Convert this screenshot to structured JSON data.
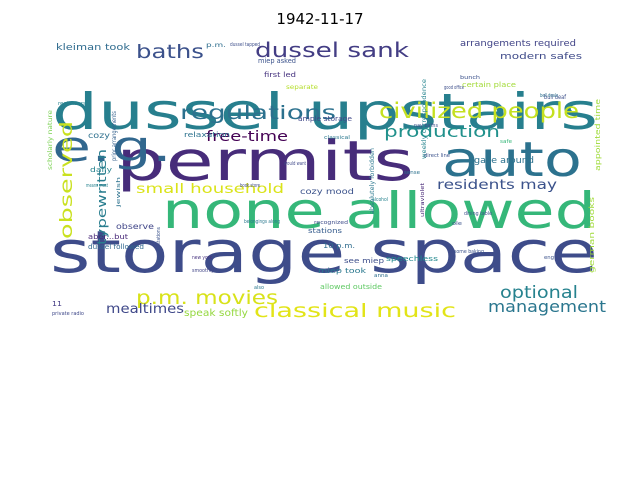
{
  "title": "1942-11-17",
  "words": [
    {
      "text": "storage space",
      "color": "#3e4c8a"
    },
    {
      "text": "none allowed",
      "color": "#35b779"
    },
    {
      "text": "permits",
      "color": "#472c7a"
    },
    {
      "text": "auto",
      "color": "#2c728e"
    },
    {
      "text": "dussel upstairs",
      "color": "#277f8e"
    },
    {
      "text": "e.g.",
      "color": "#31678e"
    },
    {
      "text": "regulations",
      "color": "#2c718e"
    },
    {
      "text": "civilized people",
      "color": "#c5e021"
    },
    {
      "text": "dussel sank",
      "color": "#433d84"
    },
    {
      "text": "baths",
      "color": "#3b518b"
    },
    {
      "text": "production",
      "color": "#21918c"
    },
    {
      "text": "observed",
      "color": "#cae11f"
    },
    {
      "text": "p.m. movies",
      "color": "#d8e219"
    },
    {
      "text": "classical music",
      "color": "#e2e418"
    },
    {
      "text": "optional",
      "color": "#26828e"
    },
    {
      "text": "management",
      "color": "#2a768e"
    },
    {
      "text": "small household",
      "color": "#dae319"
    },
    {
      "text": "free-time",
      "color": "#440154"
    },
    {
      "text": "residents may",
      "color": "#3b528b"
    },
    {
      "text": "typewritten",
      "color": "#287d8e"
    },
    {
      "text": "mealtimes",
      "color": "#3f4889"
    },
    {
      "text": "speak softly",
      "color": "#95d840"
    },
    {
      "text": "arrangements required",
      "color": "#414487"
    },
    {
      "text": "modern safes",
      "color": "#3e4a89"
    },
    {
      "text": "kleiman took",
      "color": "#2f6b8e"
    },
    {
      "text": "gaze around",
      "color": "#2c728e"
    },
    {
      "text": "cozy mood",
      "color": "#3b528b"
    },
    {
      "text": "observe",
      "color": "#404688"
    },
    {
      "text": "dussel followed",
      "color": "#31688e"
    },
    {
      "text": "10 p.m.",
      "color": "#2f6c8e"
    },
    {
      "text": "see miep",
      "color": "#3d4e8a"
    },
    {
      "text": "allowed outside",
      "color": "#5ec962"
    },
    {
      "text": "speechless",
      "color": "#23898e"
    },
    {
      "text": "stations",
      "color": "#365c8d"
    },
    {
      "text": "miep took",
      "color": "#2a788e"
    },
    {
      "text": "german books",
      "color": "#a0da39"
    },
    {
      "text": "appointed time",
      "color": "#9fda3a"
    },
    {
      "text": "relaxation",
      "color": "#2c728e"
    },
    {
      "text": "ample storage",
      "color": "#3f4788"
    },
    {
      "text": "cozy",
      "color": "#2d708e"
    },
    {
      "text": "daily",
      "color": "#26828e"
    },
    {
      "text": "aber...but",
      "color": "#482878"
    },
    {
      "text": "first led",
      "color": "#46337f"
    },
    {
      "text": "miep asked",
      "color": "#3b528b"
    },
    {
      "text": "separate",
      "color": "#b5de2b"
    },
    {
      "text": "absolutely forbidden",
      "color": "#2a788e"
    },
    {
      "text": "prior arrangements",
      "color": "#34618d"
    },
    {
      "text": "weekly correspondence",
      "color": "#25848e"
    },
    {
      "text": "certain place",
      "color": "#a2da37"
    },
    {
      "text": "scholarly nature",
      "color": "#7ad151"
    },
    {
      "text": "11",
      "color": "#443b84"
    },
    {
      "text": "private radio",
      "color": "#3f4889"
    },
    {
      "text": "p.m.",
      "color": "#2e6e8e"
    },
    {
      "text": "bull deaf",
      "color": "#3c4f8a"
    },
    {
      "text": "dussel tapped",
      "color": "#3d4e8a"
    },
    {
      "text": "good office",
      "color": "#3d4e8a"
    },
    {
      "text": "rest hours",
      "color": "#26828e"
    },
    {
      "text": "bunch",
      "color": "#3b518b"
    },
    {
      "text": "bell deals",
      "color": "#2d708e"
    },
    {
      "text": "nay baths",
      "color": "#3c4f8a"
    },
    {
      "text": "direct line",
      "color": "#3b528b"
    },
    {
      "text": "classical",
      "color": "#2a788e"
    },
    {
      "text": "would want",
      "color": "#3f4889"
    },
    {
      "text": "alcohol",
      "color": "#26828e"
    },
    {
      "text": "ultraviolet",
      "color": "#482878"
    },
    {
      "text": "sense",
      "color": "#2c728e"
    },
    {
      "text": "dining table",
      "color": "#3b528b"
    },
    {
      "text": "recognized",
      "color": "#3e4c8a"
    },
    {
      "text": "some baking",
      "color": "#3b528b"
    },
    {
      "text": "belongings along",
      "color": "#2a788e"
    },
    {
      "text": "new york",
      "color": "#46327e"
    },
    {
      "text": "german stations",
      "color": "#3b528b"
    },
    {
      "text": "smoothly",
      "color": "#414487"
    },
    {
      "text": "book store",
      "color": "#3f4889"
    },
    {
      "text": "anna",
      "color": "#2e6e8e"
    },
    {
      "text": "means must",
      "color": "#26828e"
    },
    {
      "text": "jewish",
      "color": "#2c728e"
    },
    {
      "text": "eng",
      "color": "#3b528b"
    },
    {
      "text": "safe",
      "color": "#35b779"
    },
    {
      "text": "ole",
      "color": "#3b528b"
    },
    {
      "text": "also",
      "color": "#2a788e"
    }
  ]
}
